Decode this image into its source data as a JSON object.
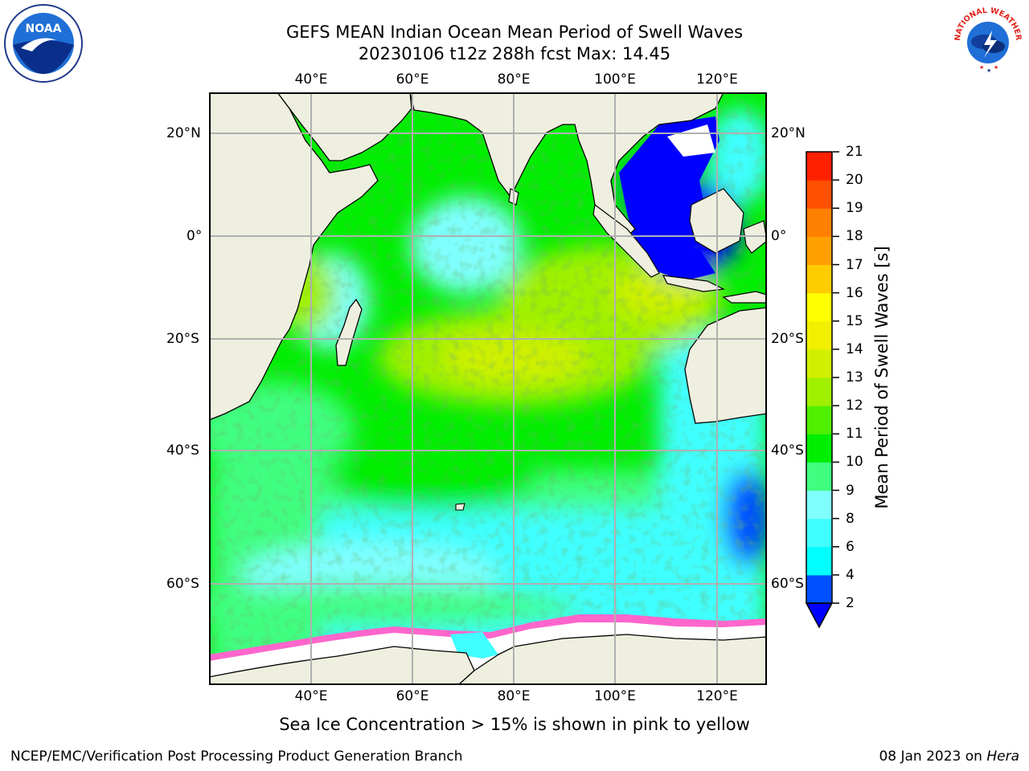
{
  "title": {
    "line1": "GEFS MEAN Indian Ocean Mean Period of Swell Waves",
    "line2": "20230106 t12z 288h fcst   Max: 14.45"
  },
  "logos": {
    "left": {
      "icon": "noaa-logo-icon",
      "text": "NOAA"
    },
    "right": {
      "icon": "nws-logo-icon",
      "text": "NATIONAL WEATHER SERVICE"
    }
  },
  "map": {
    "lon_ticks": [
      "40°E",
      "60°E",
      "80°E",
      "100°E",
      "120°E"
    ],
    "lat_ticks": [
      "20°N",
      "0°",
      "20°S",
      "40°S",
      "60°S"
    ],
    "colors": {
      "land": "#efefdf",
      "grid": "#b0b0b0",
      "sea_ice": "#ff66cc"
    }
  },
  "colorbar": {
    "label": "Mean Period of Swell Waves [s]",
    "ticks": [
      "2",
      "4",
      "6",
      "8",
      "9",
      "10",
      "11",
      "12",
      "13",
      "14",
      "15",
      "16",
      "17",
      "18",
      "19",
      "20",
      "21"
    ],
    "colors": [
      "#0050ff",
      "#00ffff",
      "#40ffff",
      "#80ffff",
      "#40ff80",
      "#00ee00",
      "#50f000",
      "#a0f000",
      "#d0f000",
      "#f0f000",
      "#ffff00",
      "#ffcc00",
      "#ffa000",
      "#ff8000",
      "#ff5000",
      "#ff2000"
    ],
    "under_color": "#0000ff"
  },
  "caption": "Sea Ice Concentration > 15% is shown in pink to yellow",
  "footer": {
    "left": "NCEP/EMC/Verification Post Processing Product Generation Branch",
    "right_date": "08 Jan 2023 on ",
    "right_host": "Hera"
  }
}
